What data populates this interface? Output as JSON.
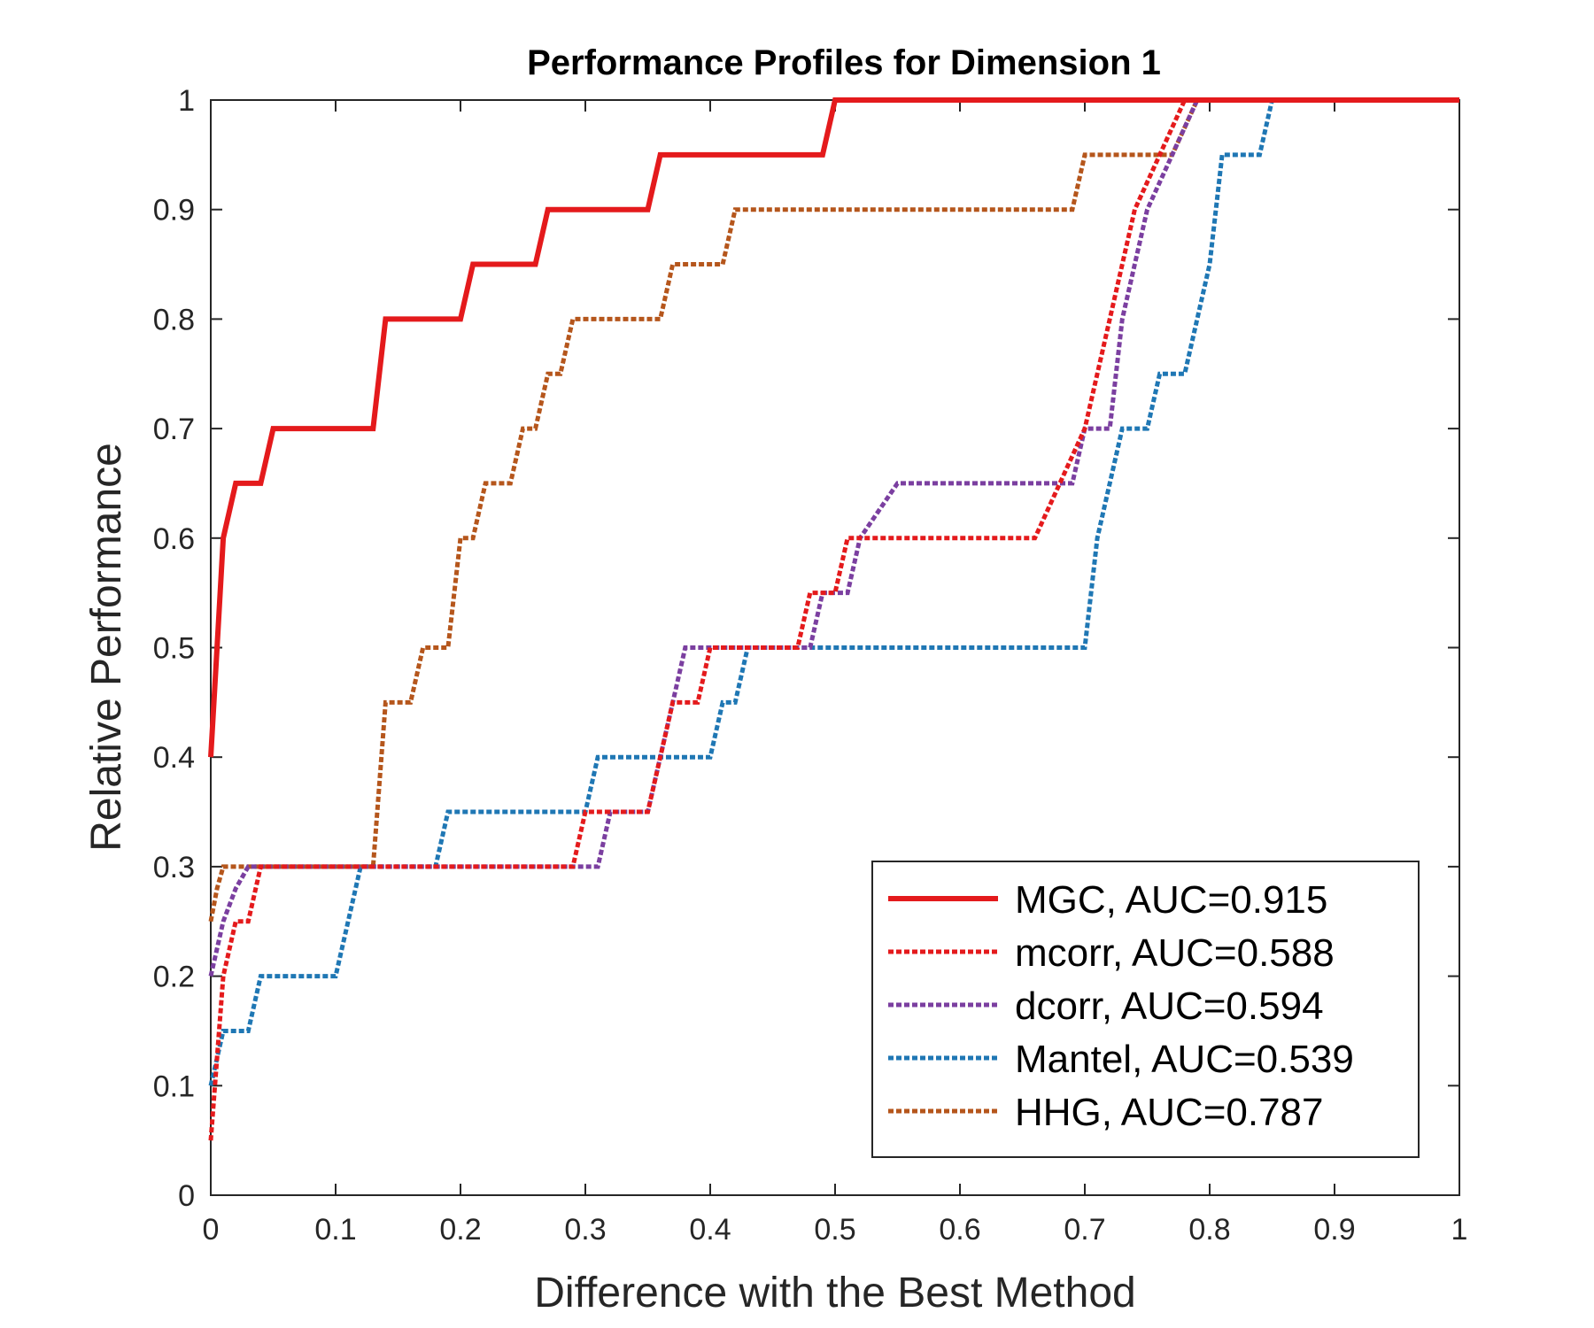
{
  "chart_data": {
    "type": "line",
    "title": "Performance Profiles for Dimension 1",
    "xlabel": "Difference with the Best Method",
    "ylabel": "Relative Performance",
    "xlim": [
      0,
      1
    ],
    "ylim": [
      0,
      1
    ],
    "xticks": [
      "0",
      "0.1",
      "0.2",
      "0.3",
      "0.4",
      "0.5",
      "0.6",
      "0.7",
      "0.8",
      "0.9",
      "1"
    ],
    "yticks": [
      "0",
      "0.1",
      "0.2",
      "0.3",
      "0.4",
      "0.5",
      "0.6",
      "0.7",
      "0.8",
      "0.9",
      "1"
    ],
    "grid": false,
    "legend_position": "bottom-right",
    "series": [
      {
        "name": "MGC, AUC=0.915",
        "color": "#e41a1c",
        "style": "solid",
        "x": [
          0,
          0.005,
          0.01,
          0.02,
          0.04,
          0.05,
          0.13,
          0.14,
          0.2,
          0.21,
          0.26,
          0.27,
          0.35,
          0.36,
          0.49,
          0.5,
          1
        ],
        "y": [
          0.4,
          0.5,
          0.6,
          0.65,
          0.65,
          0.7,
          0.7,
          0.8,
          0.8,
          0.85,
          0.85,
          0.9,
          0.9,
          0.95,
          0.95,
          1,
          1
        ]
      },
      {
        "name": "mcorr, AUC=0.588",
        "color": "#e41a1c",
        "style": "dotted",
        "x": [
          0,
          0.01,
          0.02,
          0.03,
          0.04,
          0.29,
          0.3,
          0.35,
          0.36,
          0.37,
          0.39,
          0.4,
          0.47,
          0.48,
          0.5,
          0.51,
          0.66,
          0.68,
          0.7,
          0.72,
          0.74,
          0.76,
          0.78,
          1
        ],
        "y": [
          0.05,
          0.2,
          0.25,
          0.25,
          0.3,
          0.3,
          0.35,
          0.35,
          0.4,
          0.45,
          0.45,
          0.5,
          0.5,
          0.55,
          0.55,
          0.6,
          0.6,
          0.65,
          0.7,
          0.8,
          0.9,
          0.95,
          1,
          1
        ]
      },
      {
        "name": "dcorr, AUC=0.594",
        "color": "#7b3fa0",
        "style": "dotted",
        "x": [
          0,
          0.01,
          0.02,
          0.03,
          0.04,
          0.31,
          0.32,
          0.35,
          0.36,
          0.38,
          0.48,
          0.49,
          0.51,
          0.52,
          0.55,
          0.69,
          0.7,
          0.72,
          0.73,
          0.74,
          0.75,
          0.77,
          0.79,
          1
        ],
        "y": [
          0.2,
          0.25,
          0.28,
          0.3,
          0.3,
          0.3,
          0.35,
          0.35,
          0.4,
          0.5,
          0.5,
          0.55,
          0.55,
          0.6,
          0.65,
          0.65,
          0.7,
          0.7,
          0.8,
          0.85,
          0.9,
          0.95,
          1,
          1
        ]
      },
      {
        "name": "Mantel, AUC=0.539",
        "color": "#1f77b4",
        "style": "dotted",
        "x": [
          0,
          0.01,
          0.03,
          0.04,
          0.1,
          0.11,
          0.12,
          0.18,
          0.19,
          0.3,
          0.31,
          0.4,
          0.41,
          0.42,
          0.43,
          0.7,
          0.71,
          0.72,
          0.73,
          0.75,
          0.76,
          0.78,
          0.8,
          0.81,
          0.84,
          0.85,
          1
        ],
        "y": [
          0.1,
          0.15,
          0.15,
          0.2,
          0.2,
          0.25,
          0.3,
          0.3,
          0.35,
          0.35,
          0.4,
          0.4,
          0.45,
          0.45,
          0.5,
          0.5,
          0.6,
          0.65,
          0.7,
          0.7,
          0.75,
          0.75,
          0.85,
          0.95,
          0.95,
          1,
          1
        ]
      },
      {
        "name": "HHG, AUC=0.787",
        "color": "#b5561c",
        "style": "dotted",
        "x": [
          0,
          0.005,
          0.01,
          0.13,
          0.14,
          0.16,
          0.17,
          0.19,
          0.2,
          0.21,
          0.22,
          0.24,
          0.25,
          0.26,
          0.27,
          0.28,
          0.29,
          0.36,
          0.37,
          0.41,
          0.42,
          0.69,
          0.7,
          0.75,
          0.77,
          0.79,
          1
        ],
        "y": [
          0.25,
          0.28,
          0.3,
          0.3,
          0.45,
          0.45,
          0.5,
          0.5,
          0.6,
          0.6,
          0.65,
          0.65,
          0.7,
          0.7,
          0.75,
          0.75,
          0.8,
          0.8,
          0.85,
          0.85,
          0.9,
          0.9,
          0.95,
          0.95,
          0.95,
          1,
          1
        ]
      }
    ]
  }
}
